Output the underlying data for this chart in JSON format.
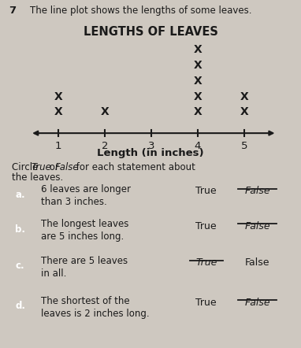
{
  "title": "LENGTHS OF LEAVES",
  "xlabel": "Length (in inches)",
  "question_num": "7",
  "question_text": "The line plot shows the lengths of some leaves.",
  "x_min": 0.4,
  "x_max": 5.7,
  "tick_positions": [
    1,
    2,
    3,
    4,
    5
  ],
  "dot_data": {
    "1": 2,
    "2": 1,
    "3": 0,
    "4": 5,
    "5": 2
  },
  "statements": [
    {
      "label": "a.",
      "text": "6 leaves are longer\nthan 3 inches.",
      "true_struck": false,
      "false_struck": true
    },
    {
      "label": "b.",
      "text": "The longest leaves\nare 5 inches long.",
      "true_struck": false,
      "false_struck": true
    },
    {
      "label": "c.",
      "text": "There are 5 leaves\nin all.",
      "true_struck": true,
      "false_struck": false
    },
    {
      "label": "d.",
      "text": "The shortest of the\nleaves is 2 inches long.",
      "true_struck": false,
      "false_struck": true
    }
  ],
  "bg_color": "#cec8c0",
  "text_color": "#1a1a1a",
  "marker_size": 10,
  "marker_color": "#1a1a1a",
  "label_box_color": "#555555"
}
